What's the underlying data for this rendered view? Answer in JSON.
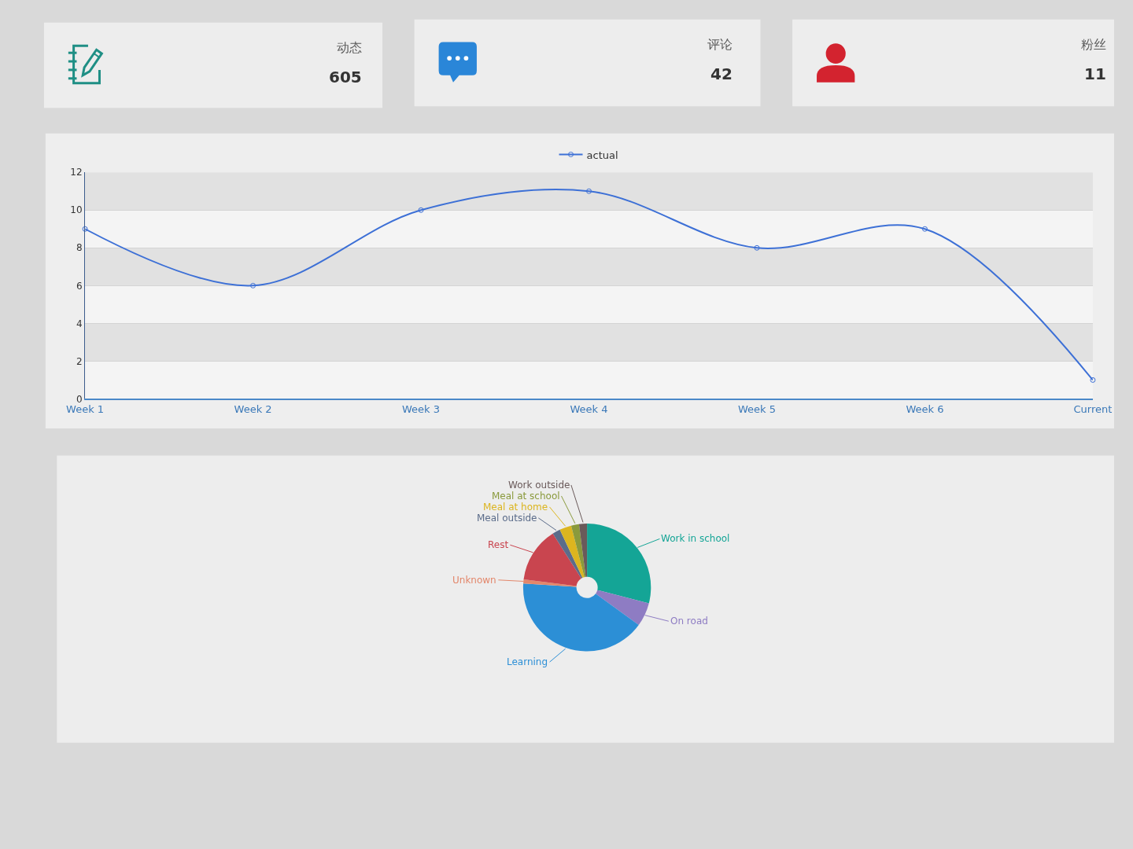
{
  "chart_data": [
    {
      "type": "other",
      "title": "动态",
      "annotations": [
        "605"
      ]
    },
    {
      "type": "other",
      "title": "评论",
      "annotations": [
        "42"
      ]
    },
    {
      "type": "other",
      "title": "粉丝",
      "annotations": [
        "11"
      ]
    },
    {
      "type": "line",
      "categories": [
        "Week 1",
        "Week 2",
        "Week 3",
        "Week 4",
        "Week 5",
        "Week 6",
        "Current"
      ],
      "series": [
        {
          "name": "actual",
          "color": "#3d70d6",
          "values": [
            9,
            6,
            10,
            11,
            8,
            9,
            1
          ]
        }
      ],
      "ylim": [
        0,
        12
      ],
      "yticks": [
        0,
        2,
        4,
        6,
        8,
        10,
        12
      ],
      "grid": "y",
      "legend": "top",
      "marker": "circle",
      "line_style": "solid"
    },
    {
      "type": "donut",
      "categories": [
        "Work in school",
        "On road",
        "Learning",
        "Unknown",
        "Rest",
        "Meal outside",
        "Meal at home",
        "Meal at school",
        "Work outside"
      ],
      "values": [
        29,
        6,
        41,
        1,
        14,
        2,
        3,
        2,
        2
      ],
      "colors": [
        "#14a596",
        "#8e7cc3",
        "#2c8fd6",
        "#e3876b",
        "#c9454f",
        "#5b6c8a",
        "#dcb51f",
        "#8a9a3c",
        "#6a5a5a"
      ]
    }
  ]
}
